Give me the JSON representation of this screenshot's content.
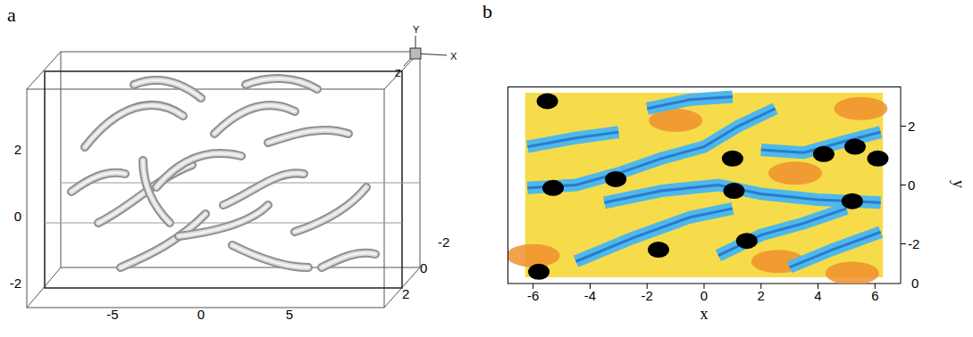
{
  "panel_a": {
    "label": "a",
    "axis_triad": [
      "Y",
      "X",
      "Z"
    ],
    "x_ticks": [
      -5,
      0,
      5
    ],
    "y_ticks": [
      -2,
      0,
      2
    ],
    "z_ticks": [
      -2,
      0,
      2
    ]
  },
  "chart_data": {
    "label": "b",
    "type": "contour",
    "xlabel": "x",
    "ylabel": "y",
    "xlim": [
      -6.9,
      6.9
    ],
    "ylim": [
      -3.35,
      3.35
    ],
    "xticks": [
      -6,
      -4,
      -2,
      0,
      2,
      4,
      6
    ],
    "yticks": [
      -2,
      0,
      2
    ],
    "annotations": [
      {
        "text": "0",
        "x": 6.9,
        "y": -3.35
      }
    ],
    "field_extent": {
      "x": [
        -6.28,
        6.28
      ],
      "y": [
        -3.14,
        3.14
      ]
    },
    "field_colors": {
      "background": "#f6dc4a",
      "streak": "#4fb8ea",
      "streak_core": "#2a7ad0",
      "patch": "#f0902e",
      "core": "#000000"
    },
    "patches": [
      {
        "x": -6.0,
        "y": -2.4
      },
      {
        "x": 2.6,
        "y": -2.6
      },
      {
        "x": 5.2,
        "y": -3.0
      },
      {
        "x": -1.0,
        "y": 2.2
      },
      {
        "x": 5.5,
        "y": 2.6
      },
      {
        "x": 3.2,
        "y": 0.4
      }
    ],
    "streaks": [
      [
        {
          "x": -6.2,
          "y": -0.1
        },
        {
          "x": -4.5,
          "y": 0.0
        },
        {
          "x": -3.0,
          "y": 0.4
        },
        {
          "x": -1.5,
          "y": 0.9
        },
        {
          "x": 0.0,
          "y": 1.3
        },
        {
          "x": 1.2,
          "y": 2.0
        },
        {
          "x": 2.5,
          "y": 2.6
        }
      ],
      [
        {
          "x": -3.5,
          "y": -0.6
        },
        {
          "x": -1.5,
          "y": -0.2
        },
        {
          "x": 0.5,
          "y": 0.0
        },
        {
          "x": 2.0,
          "y": -0.3
        },
        {
          "x": 4.0,
          "y": -0.5
        },
        {
          "x": 6.2,
          "y": -0.6
        }
      ],
      [
        {
          "x": -6.2,
          "y": 1.3
        },
        {
          "x": -4.5,
          "y": 1.6
        },
        {
          "x": -3.0,
          "y": 1.8
        }
      ],
      [
        {
          "x": -4.5,
          "y": -2.6
        },
        {
          "x": -2.5,
          "y": -1.8
        },
        {
          "x": -0.5,
          "y": -1.1
        },
        {
          "x": 1.0,
          "y": -0.8
        }
      ],
      [
        {
          "x": 0.5,
          "y": -2.4
        },
        {
          "x": 2.0,
          "y": -1.7
        },
        {
          "x": 3.5,
          "y": -1.3
        },
        {
          "x": 5.0,
          "y": -0.8
        }
      ],
      [
        {
          "x": 2.0,
          "y": 1.2
        },
        {
          "x": 3.5,
          "y": 1.1
        },
        {
          "x": 5.0,
          "y": 1.5
        },
        {
          "x": 6.2,
          "y": 1.8
        }
      ],
      [
        {
          "x": -2.0,
          "y": 2.6
        },
        {
          "x": -0.5,
          "y": 2.9
        },
        {
          "x": 1.0,
          "y": 3.0
        }
      ],
      [
        {
          "x": 3.0,
          "y": -2.8
        },
        {
          "x": 4.5,
          "y": -2.2
        },
        {
          "x": 6.2,
          "y": -1.6
        }
      ]
    ],
    "cores": [
      {
        "x": -5.5,
        "y": 2.85
      },
      {
        "x": -5.3,
        "y": -0.1
      },
      {
        "x": -3.1,
        "y": 0.2
      },
      {
        "x": 1.0,
        "y": 0.9
      },
      {
        "x": 1.05,
        "y": -0.2
      },
      {
        "x": -1.6,
        "y": -2.2
      },
      {
        "x": 1.5,
        "y": -1.9
      },
      {
        "x": 4.2,
        "y": 1.05
      },
      {
        "x": 5.3,
        "y": 1.3
      },
      {
        "x": 6.1,
        "y": 0.9
      },
      {
        "x": 5.2,
        "y": -0.55
      },
      {
        "x": -5.8,
        "y": -2.95
      }
    ]
  }
}
